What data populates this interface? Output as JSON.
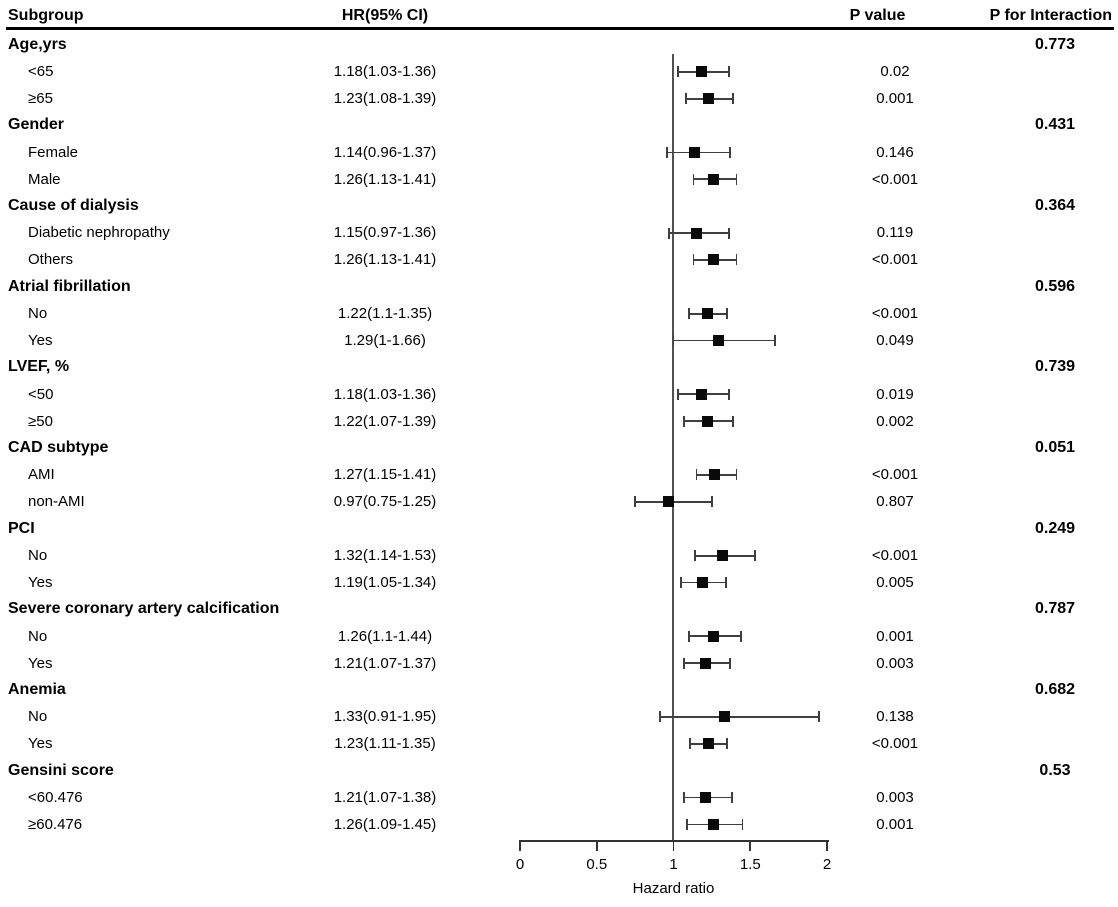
{
  "header": {
    "subgroup": "Subgroup",
    "hr_ci": "HR(95% CI)",
    "p_value": "P value",
    "p_for_interaction": "P for Interaction"
  },
  "axis": {
    "label": "Hazard ratio",
    "ticks": [
      "0",
      "0.5",
      "1",
      "1.5",
      "2"
    ]
  },
  "colors": {
    "marker": "#0a0a0a",
    "ci_line": "#3f3f3f",
    "reference_line": "#505050",
    "axis": "#333333",
    "header_rule": "#000000",
    "text": "#000000",
    "background": "#ffffff"
  },
  "chart_data": {
    "type": "forest",
    "title": "",
    "xlabel": "Hazard ratio",
    "xlim": [
      0,
      2
    ],
    "x_ticks": [
      0,
      0.5,
      1,
      1.5,
      2
    ],
    "reference_line": 1.0,
    "grid": false,
    "columns": [
      "Subgroup",
      "HR(95% CI)",
      "P value",
      "P for Interaction"
    ],
    "groups": [
      {
        "label": "Age,yrs",
        "p_for_interaction": "0.773",
        "rows": [
          {
            "label": "<65",
            "hr_ci": "1.18(1.03-1.36)",
            "hr": 1.18,
            "ci_low": 1.03,
            "ci_high": 1.36,
            "p_value": "0.02"
          },
          {
            "label": "≥65",
            "hr_ci": "1.23(1.08-1.39)",
            "hr": 1.23,
            "ci_low": 1.08,
            "ci_high": 1.39,
            "p_value": "0.001"
          }
        ]
      },
      {
        "label": "Gender",
        "p_for_interaction": "0.431",
        "rows": [
          {
            "label": "Female",
            "hr_ci": "1.14(0.96-1.37)",
            "hr": 1.14,
            "ci_low": 0.96,
            "ci_high": 1.37,
            "p_value": "0.146"
          },
          {
            "label": "Male",
            "hr_ci": "1.26(1.13-1.41)",
            "hr": 1.26,
            "ci_low": 1.13,
            "ci_high": 1.41,
            "p_value": "<0.001"
          }
        ]
      },
      {
        "label": "Cause of dialysis",
        "p_for_interaction": "0.364",
        "rows": [
          {
            "label": "Diabetic nephropathy",
            "hr_ci": "1.15(0.97-1.36)",
            "hr": 1.15,
            "ci_low": 0.97,
            "ci_high": 1.36,
            "p_value": "0.119"
          },
          {
            "label": "Others",
            "hr_ci": "1.26(1.13-1.41)",
            "hr": 1.26,
            "ci_low": 1.13,
            "ci_high": 1.41,
            "p_value": "<0.001"
          }
        ]
      },
      {
        "label": "Atrial fibrillation",
        "p_for_interaction": "0.596",
        "rows": [
          {
            "label": "No",
            "hr_ci": "1.22(1.1-1.35)",
            "hr": 1.22,
            "ci_low": 1.1,
            "ci_high": 1.35,
            "p_value": "<0.001"
          },
          {
            "label": "Yes",
            "hr_ci": "1.29(1-1.66)",
            "hr": 1.29,
            "ci_low": 1.0,
            "ci_high": 1.66,
            "p_value": "0.049"
          }
        ]
      },
      {
        "label": "LVEF, %",
        "p_for_interaction": "0.739",
        "rows": [
          {
            "label": "<50",
            "hr_ci": "1.18(1.03-1.36)",
            "hr": 1.18,
            "ci_low": 1.03,
            "ci_high": 1.36,
            "p_value": "0.019"
          },
          {
            "label": "≥50",
            "hr_ci": "1.22(1.07-1.39)",
            "hr": 1.22,
            "ci_low": 1.07,
            "ci_high": 1.39,
            "p_value": "0.002"
          }
        ]
      },
      {
        "label": "CAD subtype",
        "p_for_interaction": "0.051",
        "rows": [
          {
            "label": "AMI",
            "hr_ci": "1.27(1.15-1.41)",
            "hr": 1.27,
            "ci_low": 1.15,
            "ci_high": 1.41,
            "p_value": "<0.001"
          },
          {
            "label": "non-AMI",
            "hr_ci": "0.97(0.75-1.25)",
            "hr": 0.97,
            "ci_low": 0.75,
            "ci_high": 1.25,
            "p_value": "0.807"
          }
        ]
      },
      {
        "label": "PCI",
        "p_for_interaction": "0.249",
        "rows": [
          {
            "label": "No",
            "hr_ci": "1.32(1.14-1.53)",
            "hr": 1.32,
            "ci_low": 1.14,
            "ci_high": 1.53,
            "p_value": "<0.001"
          },
          {
            "label": "Yes",
            "hr_ci": "1.19(1.05-1.34)",
            "hr": 1.19,
            "ci_low": 1.05,
            "ci_high": 1.34,
            "p_value": "0.005"
          }
        ]
      },
      {
        "label": "Severe coronary artery calcification",
        "p_for_interaction": "0.787",
        "rows": [
          {
            "label": "No",
            "hr_ci": "1.26(1.1-1.44)",
            "hr": 1.26,
            "ci_low": 1.1,
            "ci_high": 1.44,
            "p_value": "0.001"
          },
          {
            "label": "Yes",
            "hr_ci": "1.21(1.07-1.37)",
            "hr": 1.21,
            "ci_low": 1.07,
            "ci_high": 1.37,
            "p_value": "0.003"
          }
        ]
      },
      {
        "label": "Anemia",
        "p_for_interaction": "0.682",
        "rows": [
          {
            "label": "No",
            "hr_ci": "1.33(0.91-1.95)",
            "hr": 1.33,
            "ci_low": 0.91,
            "ci_high": 1.95,
            "p_value": "0.138"
          },
          {
            "label": "Yes",
            "hr_ci": "1.23(1.11-1.35)",
            "hr": 1.23,
            "ci_low": 1.11,
            "ci_high": 1.35,
            "p_value": "<0.001"
          }
        ]
      },
      {
        "label": "Gensini score",
        "p_for_interaction": "0.53",
        "rows": [
          {
            "label": "<60.476",
            "hr_ci": "1.21(1.07-1.38)",
            "hr": 1.21,
            "ci_low": 1.07,
            "ci_high": 1.38,
            "p_value": "0.003"
          },
          {
            "label": "≥60.476",
            "hr_ci": "1.26(1.09-1.45)",
            "hr": 1.26,
            "ci_low": 1.09,
            "ci_high": 1.45,
            "p_value": "0.001"
          }
        ]
      }
    ]
  }
}
